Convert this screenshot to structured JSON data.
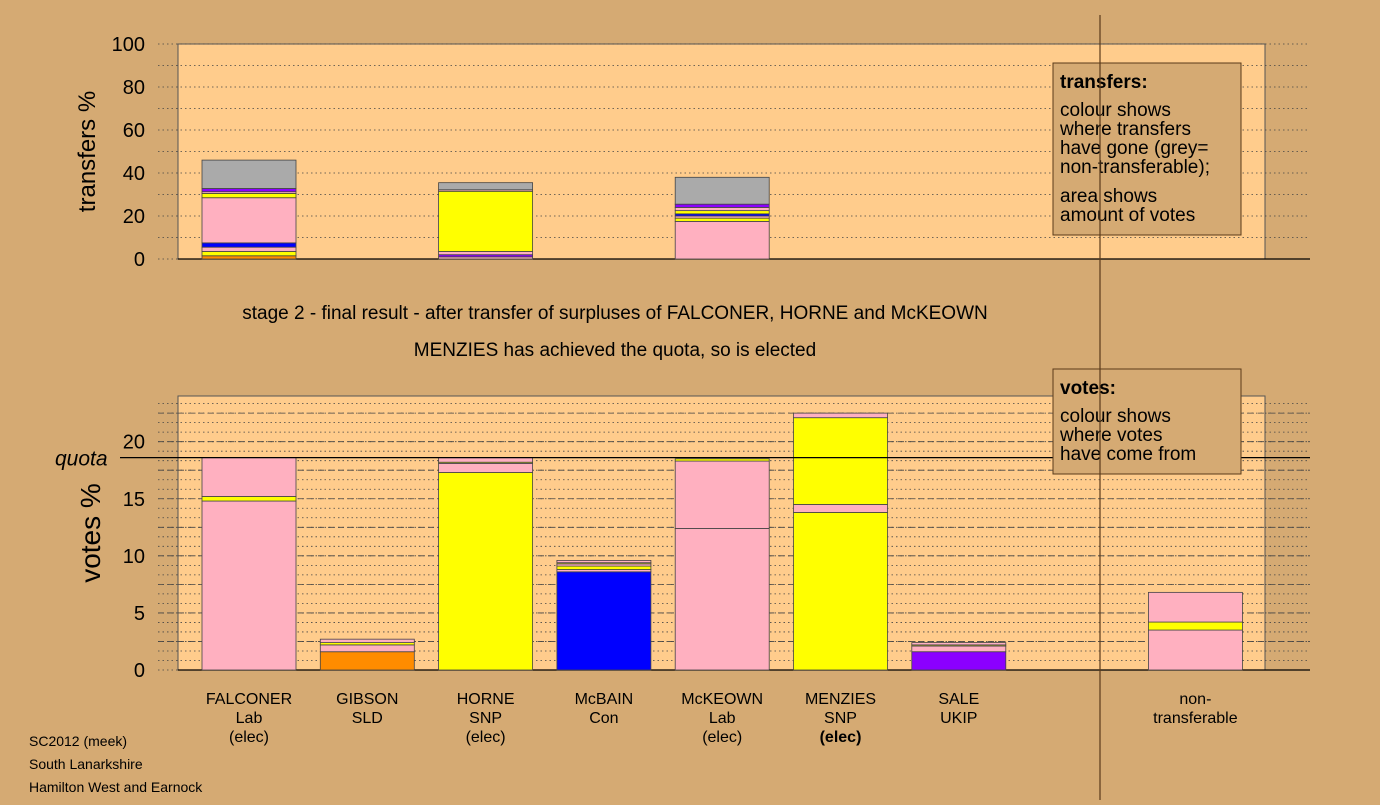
{
  "colors": {
    "page_background": "#d5aa73",
    "plot_background": "#ffcc8c",
    "Lab": "#ffb0c0",
    "SNP": "#ffff00",
    "SLD": "#ff8c00",
    "Con": "#0000ff",
    "UKIP": "#8b00ff",
    "non_transferable": "#aaaaaa"
  },
  "footer": {
    "line1": "SC2012 (meek)",
    "line2": "South Lanarkshire",
    "line3": "Hamilton West and Earnock"
  },
  "stage_caption": "stage 2 - final result - after transfer of surpluses of FALCONER, HORNE and McKEOWN",
  "elected_caption": "MENZIES has achieved the quota, so is elected",
  "transfers_legend": {
    "title": "transfers:",
    "lines": [
      "colour shows",
      "where transfers",
      "have gone (grey=",
      "non-transferable);"
    ],
    "lines2": [
      "area shows",
      "amount of votes"
    ]
  },
  "votes_legend": {
    "title": "votes:",
    "lines": [
      "colour shows",
      "where votes",
      "have come from"
    ]
  },
  "chart_data": [
    {
      "type": "bar",
      "stacked": true,
      "ylabel": "transfers %",
      "ylim": [
        0,
        100
      ],
      "yticks": [
        0,
        20,
        40,
        60,
        80,
        100
      ],
      "grid": "dotted every 10",
      "categories": [
        "FALCONER",
        "HORNE",
        "McKEOWN"
      ],
      "slots": [
        0,
        2,
        4
      ],
      "stacks": [
        [
          {
            "party": "SLD",
            "value": 1.5
          },
          {
            "party": "SNP",
            "value": 2.0
          },
          {
            "party": "Lab",
            "value": 2.0
          },
          {
            "party": "Con",
            "value": 2.0
          },
          {
            "party": "Lab",
            "value": 21.0
          },
          {
            "party": "SNP",
            "value": 2.0
          },
          {
            "party": "Lab",
            "value": 0.8
          },
          {
            "party": "UKIP",
            "value": 1.5
          },
          {
            "party": "non_transferable",
            "value": 13.2
          }
        ],
        [
          {
            "party": "Lab",
            "value": 1.0
          },
          {
            "party": "UKIP",
            "value": 1.0
          },
          {
            "party": "Lab",
            "value": 1.5
          },
          {
            "party": "SNP",
            "value": 28.0
          },
          {
            "party": "Lab",
            "value": 0.7
          },
          {
            "party": "non_transferable",
            "value": 3.3
          }
        ],
        [
          {
            "party": "Lab",
            "value": 17.5
          },
          {
            "party": "SNP",
            "value": 1.5
          },
          {
            "party": "Lab",
            "value": 1.0
          },
          {
            "party": "Con",
            "value": 1.0
          },
          {
            "party": "SNP",
            "value": 1.5
          },
          {
            "party": "Lab",
            "value": 1.5
          },
          {
            "party": "UKIP",
            "value": 1.5
          },
          {
            "party": "non_transferable",
            "value": 12.5
          }
        ]
      ]
    },
    {
      "type": "bar",
      "stacked": true,
      "ylabel": "votes %",
      "ylim": [
        0,
        24
      ],
      "yticks": [
        0,
        5,
        10,
        15,
        20
      ],
      "quota": 18.6,
      "quota_label": "quota",
      "grid": "dashed every 2.5, dotted every 0.833",
      "categories": [
        {
          "name": "FALCONER",
          "party": "Lab",
          "status": "(elec)",
          "bold": false
        },
        {
          "name": "GIBSON",
          "party": "SLD",
          "status": "",
          "bold": false
        },
        {
          "name": "HORNE",
          "party": "SNP",
          "status": "(elec)",
          "bold": false
        },
        {
          "name": "McBAIN",
          "party": "Con",
          "status": "",
          "bold": false
        },
        {
          "name": "McKEOWN",
          "party": "Lab",
          "status": "(elec)",
          "bold": false
        },
        {
          "name": "MENZIES",
          "party": "SNP",
          "status": "(elec)",
          "bold": true
        },
        {
          "name": "SALE",
          "party": "UKIP",
          "status": "",
          "bold": false
        },
        {
          "name": "non-\ntransferable",
          "party": "",
          "status": "",
          "bold": false
        }
      ],
      "slots": [
        0,
        1,
        2,
        3,
        4,
        5,
        6,
        8
      ],
      "stacks": [
        [
          {
            "party": "Lab",
            "value": 14.8
          },
          {
            "party": "SNP",
            "value": 0.4
          },
          {
            "party": "Lab",
            "value": 3.4
          }
        ],
        [
          {
            "party": "SLD",
            "value": 1.6
          },
          {
            "party": "Lab",
            "value": 0.6
          },
          {
            "party": "SNP",
            "value": 0.2
          },
          {
            "party": "Lab",
            "value": 0.3
          }
        ],
        [
          {
            "party": "SNP",
            "value": 17.3
          },
          {
            "party": "Lab",
            "value": 0.8
          },
          {
            "party": "SNP",
            "value": 0.1
          },
          {
            "party": "Lab",
            "value": 0.4
          }
        ],
        [
          {
            "party": "Con",
            "value": 8.6
          },
          {
            "party": "Lab",
            "value": 0.2
          },
          {
            "party": "SNP",
            "value": 0.3
          },
          {
            "party": "Lab",
            "value": 0.2
          },
          {
            "party": "SNP",
            "value": 0.1
          },
          {
            "party": "Lab",
            "value": 0.2
          }
        ],
        [
          {
            "party": "Lab",
            "value": 12.4
          },
          {
            "party": "Lab",
            "value": 5.9
          },
          {
            "party": "SNP",
            "value": 0.2
          }
        ],
        [
          {
            "party": "SNP",
            "value": 13.8
          },
          {
            "party": "Lab",
            "value": 0.7
          },
          {
            "party": "SNP",
            "value": 7.6
          },
          {
            "party": "Lab",
            "value": 0.4
          }
        ],
        [
          {
            "party": "UKIP",
            "value": 1.6
          },
          {
            "party": "Lab",
            "value": 0.5
          },
          {
            "party": "SNP",
            "value": 0.1
          },
          {
            "party": "Lab",
            "value": 0.2
          }
        ],
        [
          {
            "party": "Lab",
            "value": 3.5
          },
          {
            "party": "SNP",
            "value": 0.7
          },
          {
            "party": "Lab",
            "value": 2.6
          }
        ]
      ]
    }
  ]
}
